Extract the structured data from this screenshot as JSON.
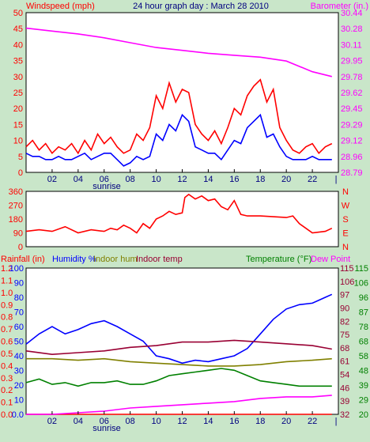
{
  "header": {
    "title": "24 hour graph day : March 28 2010",
    "windspeed_label": "Windspeed (mph)",
    "barometer_label": "Barometer (in.)"
  },
  "colors": {
    "background": "#c9e6c9",
    "plot_bg": "#ffffff",
    "red": "#ff0000",
    "magenta": "#ff00ff",
    "blue": "#0000ff",
    "green": "#008000",
    "olive": "#808000",
    "maroon": "#800000",
    "darkmaroon": "#990033"
  },
  "x_axis": {
    "ticks": [
      "02",
      "04",
      "06",
      "08",
      "10",
      "12",
      "14",
      "16",
      "18",
      "20",
      "22"
    ],
    "sunrise_label": "sunrise",
    "sunrise_hour": 6.2
  },
  "chart_data": [
    {
      "type": "line",
      "panel": "wind-barometer",
      "x_unit": "hour",
      "left_axis": {
        "label": "Windspeed (mph)",
        "ylim": [
          0,
          50
        ],
        "ticks": [
          "0",
          "5",
          "10",
          "15",
          "20",
          "25",
          "30",
          "35",
          "40",
          "45",
          "50"
        ]
      },
      "right_axis": {
        "label": "Barometer (in.)",
        "ylim": [
          28.79,
          30.44
        ],
        "ticks": [
          "28.79",
          "28.96",
          "29.12",
          "29.29",
          "29.45",
          "29.62",
          "29.78",
          "29.95",
          "30.11",
          "30.28",
          "30.44"
        ]
      },
      "grid": false,
      "series": [
        {
          "color": "#ff0000",
          "axis": "left",
          "x": [
            0,
            0.5,
            1,
            1.5,
            2,
            2.5,
            3,
            3.5,
            4,
            4.5,
            5,
            5.5,
            6,
            6.5,
            7,
            7.5,
            8,
            8.5,
            9,
            9.5,
            10,
            10.5,
            11,
            11.5,
            12,
            12.5,
            13,
            13.5,
            14,
            14.5,
            15,
            15.5,
            16,
            16.5,
            17,
            17.5,
            18,
            18.5,
            19,
            19.5,
            20,
            20.5,
            21,
            21.5,
            22,
            22.5,
            23,
            23.5
          ],
          "y": [
            8,
            10,
            7,
            9,
            6,
            8,
            7,
            9,
            6,
            10,
            7,
            12,
            9,
            11,
            8,
            6,
            7,
            12,
            10,
            14,
            24,
            20,
            28,
            22,
            26,
            25,
            15,
            12,
            10,
            13,
            9,
            14,
            20,
            18,
            24,
            27,
            29,
            22,
            26,
            14,
            10,
            7,
            6,
            8,
            9,
            6,
            8,
            9
          ]
        },
        {
          "color": "#0000ff",
          "axis": "left",
          "x": [
            0,
            0.5,
            1,
            1.5,
            2,
            2.5,
            3,
            3.5,
            4,
            4.5,
            5,
            5.5,
            6,
            6.5,
            7,
            7.5,
            8,
            8.5,
            9,
            9.5,
            10,
            10.5,
            11,
            11.5,
            12,
            12.5,
            13,
            13.5,
            14,
            14.5,
            15,
            15.5,
            16,
            16.5,
            17,
            17.5,
            18,
            18.5,
            19,
            19.5,
            20,
            20.5,
            21,
            21.5,
            22,
            22.5,
            23,
            23.5
          ],
          "y": [
            6,
            5,
            5,
            4,
            4,
            5,
            4,
            4,
            5,
            6,
            4,
            5,
            6,
            6,
            4,
            2,
            3,
            5,
            4,
            5,
            12,
            10,
            15,
            13,
            18,
            16,
            8,
            7,
            6,
            6,
            4,
            7,
            10,
            9,
            14,
            16,
            18,
            11,
            12,
            8,
            5,
            4,
            4,
            4,
            5,
            4,
            4,
            4
          ]
        },
        {
          "color": "#ff00ff",
          "axis": "right",
          "x": [
            0,
            2,
            4,
            6,
            8,
            10,
            12,
            14,
            16,
            18,
            20,
            22,
            23.5
          ],
          "y": [
            30.28,
            30.25,
            30.22,
            30.18,
            30.13,
            30.08,
            30.05,
            30.02,
            30.0,
            29.98,
            29.94,
            29.83,
            29.78
          ]
        }
      ]
    },
    {
      "type": "line",
      "panel": "wind-direction",
      "x_unit": "hour",
      "left_axis": {
        "ylim": [
          0,
          360
        ],
        "ticks": [
          "0",
          "90",
          "180",
          "270",
          "360"
        ]
      },
      "right_axis": {
        "ticks": [
          "N",
          "E",
          "S",
          "W",
          "N"
        ]
      },
      "series": [
        {
          "color": "#ff0000",
          "x": [
            0,
            1,
            2,
            3,
            4,
            5,
            6,
            6.5,
            7,
            7.5,
            8,
            8.5,
            9,
            9.5,
            10,
            10.5,
            11,
            11.5,
            12,
            12.2,
            12.5,
            13,
            13.5,
            14,
            14.5,
            15,
            15.5,
            16,
            16.5,
            17,
            18,
            19,
            20,
            20.5,
            21,
            21.5,
            22,
            23,
            23.5
          ],
          "y": [
            100,
            110,
            100,
            130,
            90,
            110,
            100,
            120,
            110,
            140,
            120,
            90,
            150,
            120,
            180,
            200,
            230,
            210,
            220,
            320,
            340,
            310,
            330,
            300,
            310,
            260,
            240,
            300,
            210,
            200,
            200,
            195,
            190,
            200,
            150,
            120,
            90,
            100,
            120
          ]
        }
      ]
    },
    {
      "type": "line",
      "panel": "rain-humidity-temperature",
      "x_unit": "hour",
      "axes": [
        {
          "label": "Rainfall (in)",
          "ylim": [
            0,
            1.2
          ],
          "ticks": [
            "0.0",
            "0.1",
            "0.2",
            "0.3",
            "0.4",
            "0.5",
            "0.6",
            "0.7",
            "0.8",
            "0.9",
            "1.0",
            "1.1",
            "1.2"
          ]
        },
        {
          "label": "Humidity %",
          "ylim": [
            0,
            100
          ],
          "ticks": [
            "0.0",
            "10",
            "20",
            "30",
            "40",
            "50",
            "60",
            "70",
            "80",
            "90",
            "100"
          ]
        },
        {
          "label": "Temperature (°F)",
          "ylim": [
            32,
            115
          ],
          "ticks": [
            "32",
            "39",
            "46",
            "54",
            "61",
            "68",
            "75",
            "82",
            "90",
            "97",
            "106",
            "115"
          ]
        },
        {
          "label": "Dew Point",
          "ylim": [
            20,
            112
          ],
          "ticks": [
            "20",
            "29",
            "39",
            "48",
            "58",
            "68",
            "78",
            "87",
            "96",
            "106",
            "115"
          ]
        }
      ],
      "legend": [
        "Rainfall (in)",
        "Humidity %",
        "Indoor hum",
        "Indoor temp",
        "Temperature (°F)",
        "Dew Point"
      ],
      "series": [
        {
          "name": "Rainfall (in)",
          "color": "#ff0000",
          "axis": 0,
          "x": [
            0,
            23.5
          ],
          "y": [
            0,
            0
          ]
        },
        {
          "name": "Humidity %",
          "color": "#0000ff",
          "axis": 1,
          "x": [
            0,
            1,
            2,
            3,
            4,
            5,
            6,
            7,
            8,
            9,
            10,
            11,
            12,
            13,
            14,
            15,
            16,
            17,
            18,
            19,
            20,
            21,
            22,
            23,
            23.5
          ],
          "y": [
            48,
            55,
            60,
            55,
            58,
            62,
            64,
            60,
            55,
            50,
            40,
            38,
            35,
            37,
            36,
            38,
            40,
            45,
            55,
            65,
            72,
            75,
            76,
            80,
            82
          ]
        },
        {
          "name": "Indoor hum",
          "color": "#808000",
          "axis": 1,
          "x": [
            0,
            2,
            4,
            6,
            8,
            10,
            12,
            14,
            16,
            18,
            20,
            22,
            23.5
          ],
          "y": [
            38,
            38,
            37,
            38,
            36,
            35,
            34,
            33,
            33,
            34,
            36,
            37,
            38
          ]
        },
        {
          "name": "Indoor temp",
          "color": "#990033",
          "axis": 2,
          "x": [
            0,
            2,
            4,
            6,
            8,
            10,
            12,
            14,
            16,
            18,
            20,
            22,
            23.5
          ],
          "y": [
            68,
            66,
            67,
            68,
            70,
            71,
            73,
            73,
            74,
            73,
            72,
            71,
            69
          ]
        },
        {
          "name": "Temperature (°F)",
          "color": "#008000",
          "axis": 2,
          "x": [
            0,
            1,
            2,
            3,
            4,
            5,
            6,
            7,
            8,
            9,
            10,
            11,
            12,
            13,
            14,
            15,
            16,
            17,
            18,
            19,
            20,
            21,
            22,
            23,
            23.5
          ],
          "y": [
            50,
            52,
            49,
            50,
            48,
            50,
            50,
            51,
            49,
            49,
            51,
            54,
            55,
            56,
            57,
            58,
            57,
            54,
            51,
            50,
            49,
            48,
            48,
            48,
            48
          ]
        },
        {
          "name": "Dew Point",
          "color": "#ff00ff",
          "axis": 3,
          "x": [
            0,
            2,
            4,
            6,
            8,
            10,
            12,
            14,
            16,
            18,
            20,
            22,
            23.5
          ],
          "y": [
            20,
            20,
            21,
            22,
            24,
            25,
            26,
            27,
            28,
            30,
            31,
            31,
            32
          ]
        }
      ]
    }
  ]
}
